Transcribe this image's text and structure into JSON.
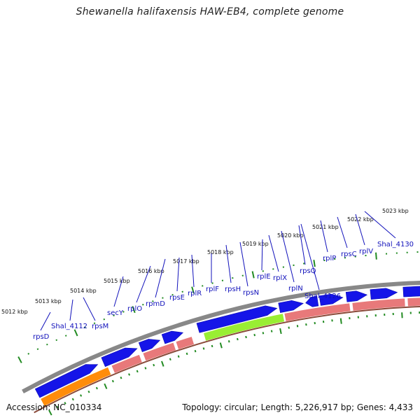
{
  "title": "Shewanella halifaxensis HAW-EB4, complete genome",
  "footer": {
    "accession": "Accession: NC_010334",
    "topology": "Topology: circular; Length: 5,226,917 bp; Genes: 4,433"
  },
  "colors": {
    "backbone": "#888888",
    "forward_gene": "#1515e8",
    "reverse_gene": "#e8797a",
    "rrna_orange": "#ff8c0a",
    "special_green": "#99ee33",
    "tick_green": "#228b22",
    "label_blue": "#1111bb"
  },
  "kbp_labels": [
    "5012 kbp",
    "5013 kbp",
    "5014 kbp",
    "5015 kbp",
    "5016 kbp",
    "5017 kbp",
    "5018 kbp",
    "5019 kbp",
    "5020 kbp",
    "5021 kbp",
    "5022 kbp",
    "5023 kbp"
  ],
  "gene_labels": [
    "rpsD",
    "Shal_4112",
    "rpsM",
    "secY",
    "rplO",
    "rpmD",
    "rpsE",
    "rplR",
    "rplF",
    "rpsH",
    "rpsN",
    "rplE",
    "rplX",
    "rplN",
    "rpsQ",
    "Shal_4126",
    "rplP",
    "rpsC",
    "rplV",
    "Shal_4130"
  ]
}
